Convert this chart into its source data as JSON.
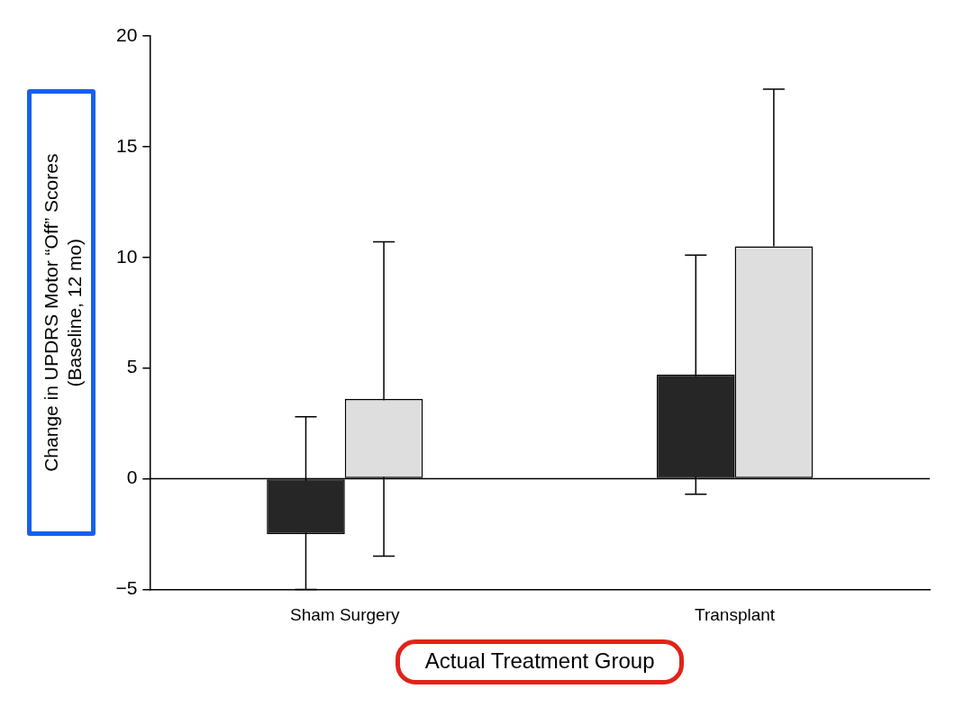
{
  "chart_data": {
    "type": "bar",
    "xlabel": "Actual Treatment Group",
    "ylabel": "Change in UPDRS Motor “Off” Scores\n(Baseline, 12 mo)",
    "categories": [
      "Sham Surgery",
      "Transplant"
    ],
    "series": [
      {
        "color": "#262626",
        "values": [
          -2.5,
          4.7
        ],
        "errors": [
          [
            -5,
            2.8
          ],
          [
            -0.7,
            10.1
          ]
        ]
      },
      {
        "color": "#dedede",
        "values": [
          3.6,
          10.5
        ],
        "errors": [
          [
            -3.5,
            10.7
          ],
          [
            10.5,
            17.6
          ]
        ]
      }
    ],
    "ylim": [
      -5,
      20
    ],
    "yticks": [
      -5,
      0,
      5,
      10,
      15,
      20
    ],
    "ref_lines": [
      {
        "axis": "y",
        "value": 0
      }
    ],
    "grid": false,
    "legend": false
  }
}
